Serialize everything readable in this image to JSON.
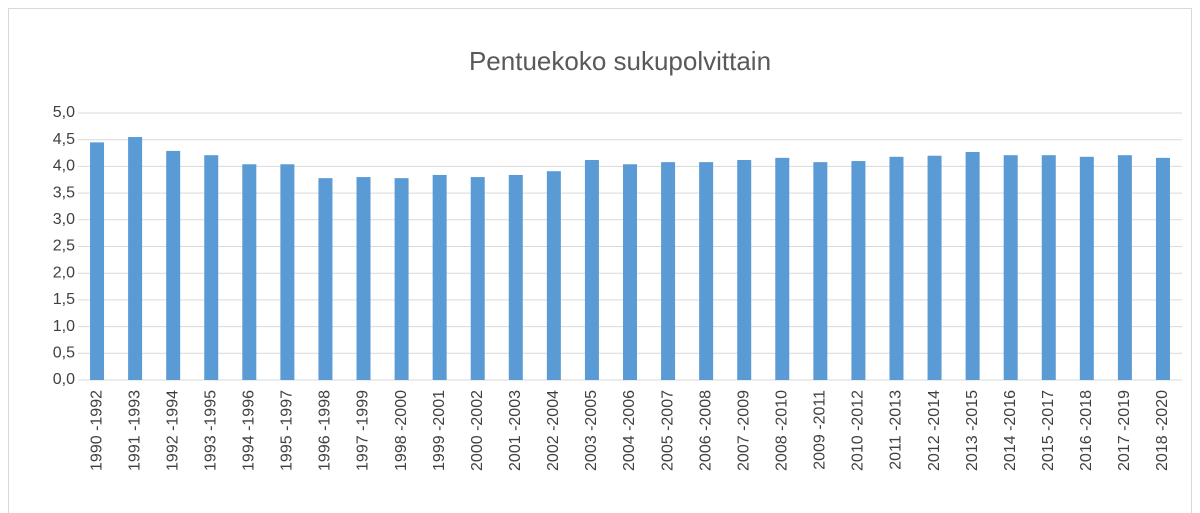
{
  "chart_data": {
    "type": "bar",
    "title": "Pentuekoko sukupolvittain",
    "categories": [
      "1990 -1992",
      "1991 -1993",
      "1992 -1994",
      "1993 -1995",
      "1994 -1996",
      "1995 -1997",
      "1996 -1998",
      "1997 -1999",
      "1998 -2000",
      "1999 -2001",
      "2000 -2002",
      "2001 -2003",
      "2002 -2004",
      "2003 -2005",
      "2004 -2006",
      "2005 -2007",
      "2006 -2008",
      "2007 -2009",
      "2008 -2010",
      "2009 -2011",
      "2010 -2012",
      "2011 -2013",
      "2012 -2014",
      "2013 -2015",
      "2014 -2016",
      "2015 -2017",
      "2016 -2018",
      "2017 -2019",
      "2018 -2020"
    ],
    "values": [
      4.45,
      4.55,
      4.29,
      4.21,
      4.04,
      4.04,
      3.78,
      3.8,
      3.78,
      3.84,
      3.8,
      3.84,
      3.91,
      4.12,
      4.04,
      4.08,
      4.08,
      4.12,
      4.16,
      4.08,
      4.1,
      4.18,
      4.2,
      4.27,
      4.21,
      4.21,
      4.18,
      4.21,
      4.16
    ],
    "color": "#5b9bd5",
    "ylim": [
      0,
      5
    ],
    "yticks": [
      {
        "value": 0,
        "label": "0,0"
      },
      {
        "value": 0.5,
        "label": "0,5"
      },
      {
        "value": 1,
        "label": "1,0"
      },
      {
        "value": 1.5,
        "label": "1,5"
      },
      {
        "value": 2,
        "label": "2,0"
      },
      {
        "value": 2.5,
        "label": "2,5"
      },
      {
        "value": 3,
        "label": "3,0"
      },
      {
        "value": 3.5,
        "label": "3,5"
      },
      {
        "value": 4,
        "label": "4,0"
      },
      {
        "value": 4.5,
        "label": "4,5"
      },
      {
        "value": 5,
        "label": "5,0"
      }
    ],
    "grid": true
  }
}
